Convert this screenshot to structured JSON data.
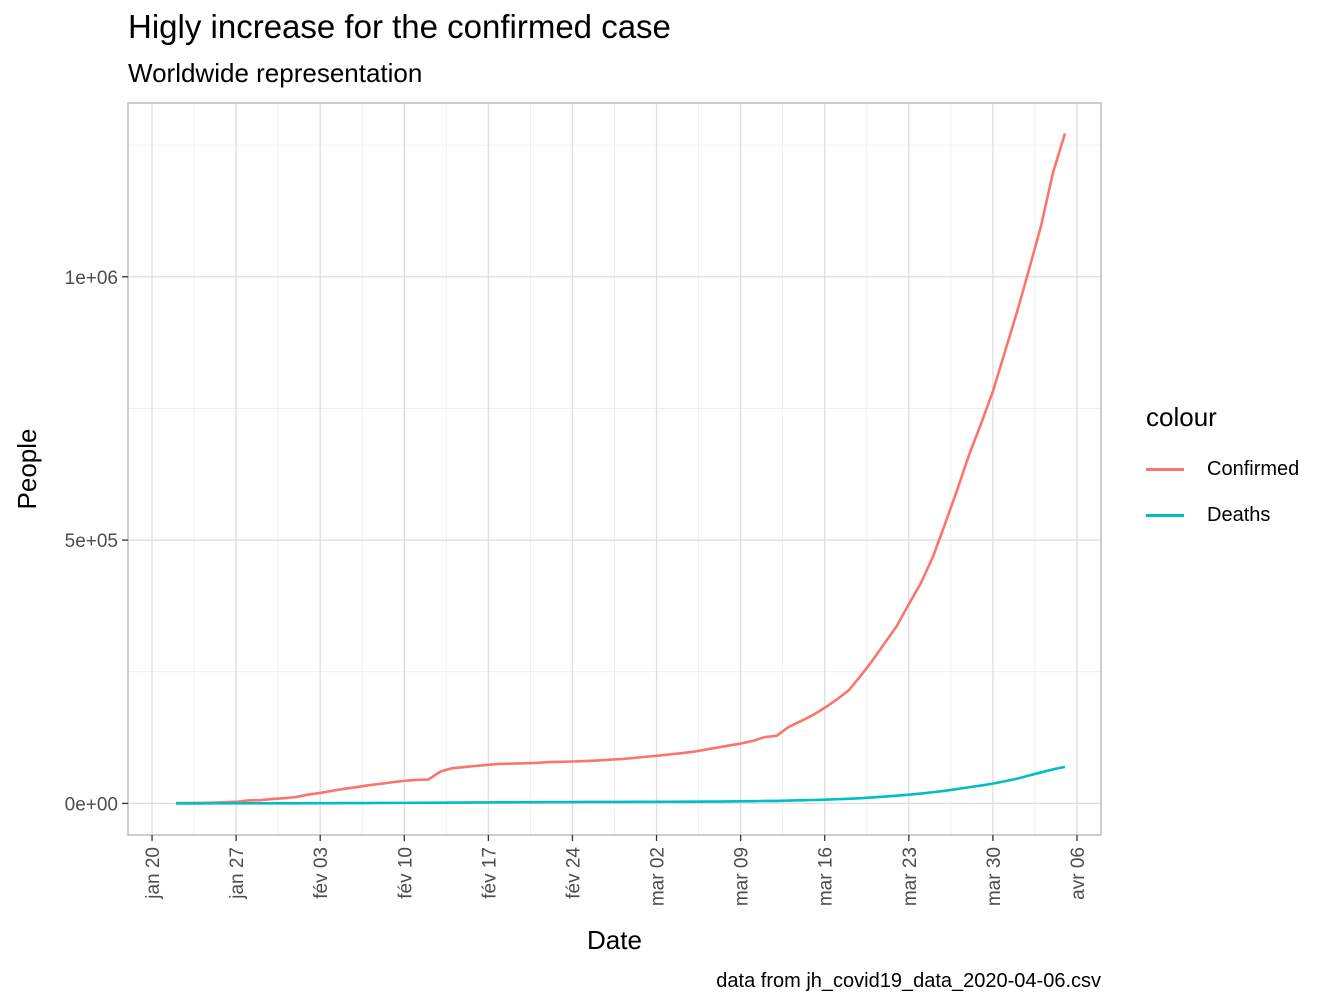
{
  "chart_data": {
    "type": "line",
    "title": "Higly increase for the confirmed case",
    "subtitle": "Worldwide representation",
    "xlabel": "Date",
    "ylabel": "People",
    "caption": "data from jh_covid19_data_2020-04-06.csv",
    "legend_title": "colour",
    "legend_position": "right",
    "grid": true,
    "x_type": "date",
    "xlim": [
      "2020-01-18",
      "2020-04-08"
    ],
    "ylim": [
      -60000,
      1330000
    ],
    "x_ticks": [
      {
        "date": "2020-01-20",
        "label": "jan 20"
      },
      {
        "date": "2020-01-27",
        "label": "jan 27"
      },
      {
        "date": "2020-02-03",
        "label": "fév 03"
      },
      {
        "date": "2020-02-10",
        "label": "fév 10"
      },
      {
        "date": "2020-02-17",
        "label": "fév 17"
      },
      {
        "date": "2020-02-24",
        "label": "fév 24"
      },
      {
        "date": "2020-03-02",
        "label": "mar 02"
      },
      {
        "date": "2020-03-09",
        "label": "mar 09"
      },
      {
        "date": "2020-03-16",
        "label": "mar 16"
      },
      {
        "date": "2020-03-23",
        "label": "mar 23"
      },
      {
        "date": "2020-03-30",
        "label": "mar 30"
      },
      {
        "date": "2020-04-06",
        "label": "avr 06"
      }
    ],
    "y_ticks": [
      {
        "value": 0,
        "label": "0e+00"
      },
      {
        "value": 500000,
        "label": "5e+05"
      },
      {
        "value": 1000000,
        "label": "1e+06"
      }
    ],
    "start_date": "2020-01-22",
    "series": [
      {
        "name": "Confirmed",
        "color": "#F8766D",
        "values": [
          555,
          654,
          941,
          1434,
          2118,
          2927,
          5578,
          6166,
          8234,
          9927,
          12038,
          16787,
          19881,
          23892,
          27635,
          30794,
          34391,
          37120,
          40150,
          42762,
          44802,
          45221,
          60368,
          66885,
          69030,
          71224,
          73258,
          75136,
          75639,
          76197,
          76819,
          78572,
          78958,
          79561,
          80406,
          81388,
          82746,
          84112,
          86011,
          88369,
          90306,
          92840,
          95120,
          97886,
          101801,
          105847,
          109821,
          113590,
          118620,
          125875,
          128352,
          145205,
          156101,
          167454,
          181574,
          197102,
          214821,
          242570,
          272208,
          304507,
          336953,
          378235,
          418045,
          467653,
          529591,
          593291,
          660706,
          720117,
          782365,
          857487,
          932605,
          1013157,
          1095917,
          1197405,
          1272115
        ]
      },
      {
        "name": "Deaths",
        "color": "#00BFC4",
        "values": [
          17,
          18,
          26,
          42,
          56,
          82,
          131,
          133,
          171,
          213,
          259,
          362,
          426,
          492,
          564,
          634,
          719,
          806,
          906,
          1013,
          1113,
          1118,
          1371,
          1523,
          1666,
          1770,
          1868,
          2007,
          2122,
          2247,
          2251,
          2458,
          2469,
          2629,
          2708,
          2770,
          2814,
          2872,
          2941,
          2996,
          3085,
          3160,
          3254,
          3348,
          3460,
          3558,
          3802,
          3988,
          4262,
          4615,
          4720,
          5404,
          5819,
          6440,
          7126,
          7905,
          8733,
          9867,
          11299,
          12973,
          14623,
          16497,
          18615,
          21181,
          23970,
          27198,
          30652,
          33925,
          37582,
          42107,
          46809,
          52983,
          58787,
          64606,
          69374
        ]
      }
    ]
  }
}
